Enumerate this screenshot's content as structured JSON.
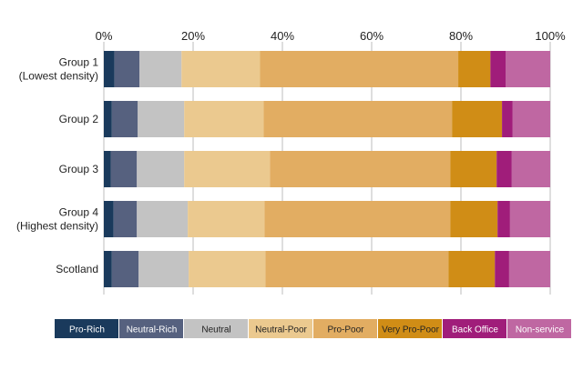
{
  "chart_data": {
    "type": "bar",
    "orientation": "horizontal",
    "stacked": true,
    "title": "",
    "xlabel": "",
    "ylabel": "",
    "xlim": [
      0,
      100
    ],
    "x_ticks": [
      "0%",
      "20%",
      "40%",
      "60%",
      "80%",
      "100%"
    ],
    "grid": true,
    "legend_position": "bottom",
    "categories": [
      [
        "Group 1",
        "(Lowest density)"
      ],
      [
        "Group 2"
      ],
      [
        "Group 3"
      ],
      [
        "Group 4",
        "(Highest density)"
      ],
      [
        "Scotland"
      ]
    ],
    "series": [
      {
        "name": "Pro-Rich",
        "color": "#1a3a5c",
        "text_color": "#ffffff",
        "values": [
          2.4,
          1.8,
          1.6,
          2.2,
          1.8
        ]
      },
      {
        "name": "Neutral-Rich",
        "color": "#56617f",
        "text_color": "#ffffff",
        "values": [
          5.6,
          5.8,
          5.8,
          5.2,
          6.0
        ]
      },
      {
        "name": "Neutral",
        "color": "#c3c3c3",
        "text_color": "#222222",
        "values": [
          9.4,
          10.4,
          10.6,
          11.4,
          11.2
        ]
      },
      {
        "name": "Neutral-Poor",
        "color": "#ebc98f",
        "text_color": "#222222",
        "values": [
          17.6,
          17.8,
          19.2,
          17.2,
          17.2
        ]
      },
      {
        "name": "Pro-Poor",
        "color": "#e2ad62",
        "text_color": "#222222",
        "values": [
          44.4,
          42.2,
          40.4,
          41.6,
          41.0
        ]
      },
      {
        "name": "Very Pro-Poor",
        "color": "#d08d16",
        "text_color": "#222222",
        "values": [
          7.2,
          11.2,
          10.4,
          10.6,
          10.4
        ]
      },
      {
        "name": "Back Office",
        "color": "#a01d7a",
        "text_color": "#ffffff",
        "values": [
          3.4,
          2.4,
          3.4,
          2.8,
          3.2
        ]
      },
      {
        "name": "Non-service",
        "color": "#bf67a2",
        "text_color": "#ffffff",
        "values": [
          10.0,
          8.4,
          8.6,
          9.0,
          9.2
        ]
      }
    ]
  }
}
